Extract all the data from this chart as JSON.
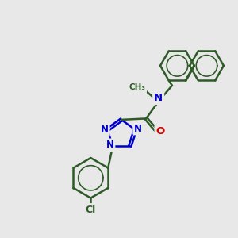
{
  "bg_color": "#e8e8e8",
  "bond_color": "#2d5a27",
  "n_color": "#0000cc",
  "o_color": "#cc0000",
  "cl_color": "#2d5a27",
  "bond_width": 1.8,
  "figsize": [
    3.0,
    3.0
  ],
  "dpi": 100,
  "xlim": [
    0,
    10
  ],
  "ylim": [
    0,
    10
  ]
}
